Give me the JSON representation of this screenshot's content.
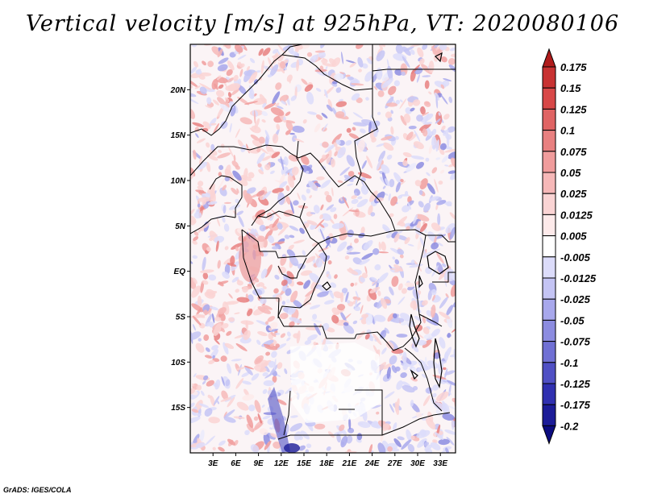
{
  "title": "Vertical velocity [m/s] at 925hPa, VT: 2020080106",
  "credit": "GrADS: IGES/COLA",
  "map": {
    "region": "Central Africa",
    "lat_labels": [
      "20N",
      "15N",
      "10N",
      "5N",
      "EQ",
      "5S",
      "10S",
      "15S"
    ],
    "lat_values": [
      20,
      15,
      10,
      5,
      0,
      -5,
      -10,
      -15
    ],
    "lon_labels": [
      "3E",
      "6E",
      "9E",
      "12E",
      "15E",
      "18E",
      "21E",
      "24E",
      "27E",
      "30E",
      "33E"
    ],
    "lon_values": [
      3,
      6,
      9,
      12,
      15,
      18,
      21,
      24,
      27,
      30,
      33
    ],
    "lon_range": [
      0,
      35
    ],
    "lat_range": [
      -20,
      25
    ]
  },
  "colorbar": {
    "labels": [
      "0.175",
      "0.15",
      "0.125",
      "0.1",
      "0.075",
      "0.05",
      "0.025",
      "0.0125",
      "0.005",
      "-0.005",
      "-0.0125",
      "-0.025",
      "-0.05",
      "-0.075",
      "-0.1",
      "-0.125",
      "-0.175",
      "-0.2"
    ],
    "colors": [
      "#b01c1c",
      "#c83232",
      "#d84848",
      "#e06464",
      "#e88080",
      "#f09c9c",
      "#f6b8b8",
      "#fad4d4",
      "#fdeaea",
      "#ffffff",
      "#dcdcfa",
      "#c4c4f4",
      "#a8a8ec",
      "#8c8ce0",
      "#7070d4",
      "#5050c4",
      "#3030b0",
      "#1c1c98",
      "#0c0c80"
    ]
  }
}
